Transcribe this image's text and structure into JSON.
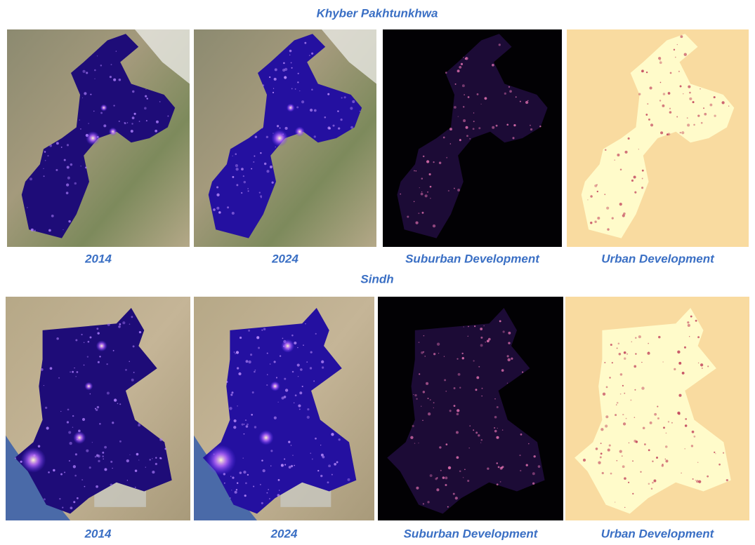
{
  "sections": [
    {
      "title": "Khyber Pakhtunkhwa",
      "panels": [
        "2014",
        "2024",
        "Suburban Development",
        "Urban Development"
      ]
    },
    {
      "title": "Sindh",
      "panels": [
        "2014",
        "2024",
        "Suburban Development",
        "Urban Development"
      ]
    }
  ]
}
